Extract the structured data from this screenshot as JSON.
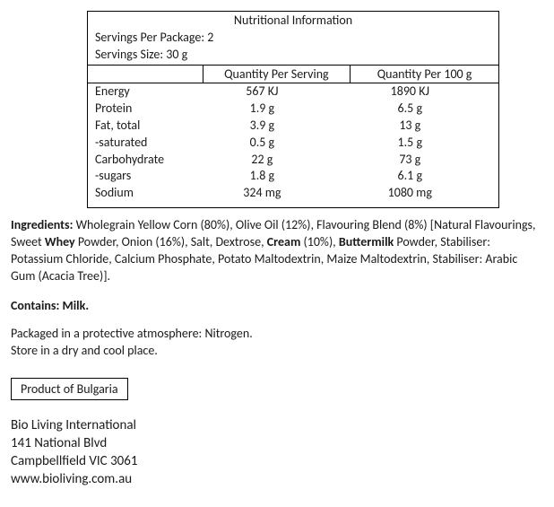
{
  "table": {
    "title": "Nutritional Information",
    "servings_per_package": "Servings Per Package: 2",
    "servings_size": "Servings Size: 30 g",
    "col_serving": "Quantity Per Serving",
    "col_g100": "Quantity Per 100 g",
    "rows": [
      {
        "label": "Energy",
        "serving": "567 KJ",
        "g100": "1890 KJ"
      },
      {
        "label": "Protein",
        "serving": "1.9 g",
        "g100": "6.5 g"
      },
      {
        "label": "Fat, total",
        "serving": "3.9 g",
        "g100": "13 g"
      },
      {
        "label": "-saturated",
        "serving": "0.5 g",
        "g100": "1.5 g"
      },
      {
        "label": "Carbohydrate",
        "serving": "22 g",
        "g100": "73 g"
      },
      {
        "label": "-sugars",
        "serving": "1.8 g",
        "g100": "6.1 g"
      },
      {
        "label": "Sodium",
        "serving": "324 mg",
        "g100": "1080 mg"
      }
    ]
  },
  "ingredients": {
    "label": "Ingredients:",
    "seg1": " Wholegrain Yellow Corn (80%), Olive Oil (12%), Flavouring Blend (8%) [Natural Flavourings, Sweet ",
    "b1": "Whey",
    "seg2": " Powder, Onion (16%), Salt, Dextrose, ",
    "b2": "Cream",
    "seg3": " (10%), ",
    "b3": "Buttermilk",
    "seg4": " Powder, Stabiliser: Potassium Chloride, Calcium Phosphate, Potato Maltodextrin, Maize Maltodextrin, Stabiliser: Arabic Gum (Acacia Tree)]."
  },
  "contains": "Contains: Milk.",
  "storage": {
    "line1": "Packaged in a protective atmosphere: Nitrogen.",
    "line2": "Store in a dry and cool place."
  },
  "origin": "Product of Bulgaria",
  "company": {
    "name": "Bio Living International",
    "addr1": "141 National Blvd",
    "addr2": "Campbellfield VIC 3061",
    "web": "www.bioliving.com.au"
  }
}
